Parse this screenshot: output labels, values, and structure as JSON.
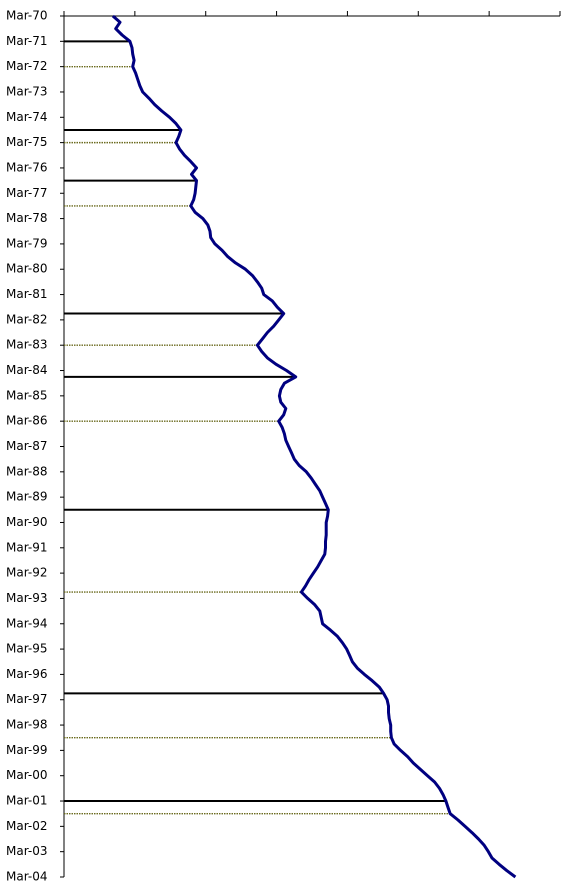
{
  "chart_data": {
    "type": "line",
    "categories": [
      "Mar-70",
      null,
      null,
      null,
      "Mar-71",
      null,
      null,
      null,
      "Mar-72",
      null,
      null,
      null,
      "Mar-73",
      null,
      null,
      null,
      "Mar-74",
      null,
      null,
      null,
      "Mar-75",
      null,
      null,
      null,
      "Mar-76",
      null,
      null,
      null,
      "Mar-77",
      null,
      null,
      null,
      "Mar-78",
      null,
      null,
      null,
      "Mar-79",
      null,
      null,
      null,
      "Mar-80",
      null,
      null,
      null,
      "Mar-81",
      null,
      null,
      null,
      "Mar-82",
      null,
      null,
      null,
      "Mar-83",
      null,
      null,
      null,
      "Mar-84",
      null,
      null,
      null,
      "Mar-85",
      null,
      null,
      null,
      "Mar-86",
      null,
      null,
      null,
      "Mar-87",
      null,
      null,
      null,
      "Mar-88",
      null,
      null,
      null,
      "Mar-89",
      null,
      null,
      null,
      "Mar-90",
      null,
      null,
      null,
      "Mar-91",
      null,
      null,
      null,
      "Mar-92",
      null,
      null,
      null,
      "Mar-93",
      null,
      null,
      null,
      "Mar-94",
      null,
      null,
      null,
      "Mar-95",
      null,
      null,
      null,
      "Mar-96",
      null,
      null,
      null,
      "Mar-97",
      null,
      null,
      null,
      "Mar-98",
      null,
      null,
      null,
      "Mar-99",
      null,
      null,
      null,
      "Mar-00",
      null,
      null,
      null,
      "Mar-01",
      null,
      null,
      null,
      "Mar-02",
      null,
      null,
      null,
      "Mar-03",
      null,
      null,
      null,
      "Mar-04"
    ],
    "series": [
      {
        "color": "#000080",
        "values": [
          0.69,
          0.79,
          0.73,
          0.82,
          0.93,
          0.96,
          0.97,
          0.99,
          0.97,
          1.01,
          1.04,
          1.07,
          1.11,
          1.2,
          1.28,
          1.38,
          1.49,
          1.58,
          1.65,
          1.62,
          1.58,
          1.63,
          1.7,
          1.79,
          1.87,
          1.8,
          1.87,
          1.86,
          1.85,
          1.83,
          1.79,
          1.85,
          1.96,
          2.03,
          2.06,
          2.07,
          2.13,
          2.23,
          2.31,
          2.42,
          2.56,
          2.66,
          2.73,
          2.79,
          2.82,
          2.94,
          3.01,
          3.1,
          3.03,
          2.96,
          2.87,
          2.8,
          2.73,
          2.79,
          2.87,
          2.99,
          3.14,
          3.27,
          3.11,
          3.06,
          3.04,
          3.06,
          3.13,
          3.1,
          3.03,
          3.08,
          3.11,
          3.13,
          3.17,
          3.21,
          3.25,
          3.32,
          3.42,
          3.49,
          3.55,
          3.61,
          3.65,
          3.69,
          3.73,
          3.72,
          3.7,
          3.7,
          3.7,
          3.69,
          3.69,
          3.68,
          3.63,
          3.58,
          3.52,
          3.46,
          3.41,
          3.35,
          3.44,
          3.54,
          3.61,
          3.63,
          3.65,
          3.76,
          3.86,
          3.93,
          3.99,
          4.03,
          4.07,
          4.14,
          4.24,
          4.35,
          4.45,
          4.51,
          4.56,
          4.58,
          4.58,
          4.59,
          4.61,
          4.61,
          4.62,
          4.66,
          4.75,
          4.85,
          4.93,
          5.03,
          5.13,
          5.23,
          5.3,
          5.35,
          5.39,
          5.42,
          5.45,
          5.56,
          5.66,
          5.76,
          5.85,
          5.93,
          5.99,
          6.04,
          6.14,
          6.25,
          6.37
        ]
      }
    ],
    "peaks": [
      4,
      18,
      26,
      47,
      57,
      78,
      107,
      124
    ],
    "troughs": [
      8,
      20,
      30,
      52,
      64,
      91,
      114,
      126
    ],
    "xlim": [
      0,
      7
    ],
    "xticks": [
      0,
      1,
      2,
      3,
      4,
      5,
      6,
      7
    ]
  }
}
